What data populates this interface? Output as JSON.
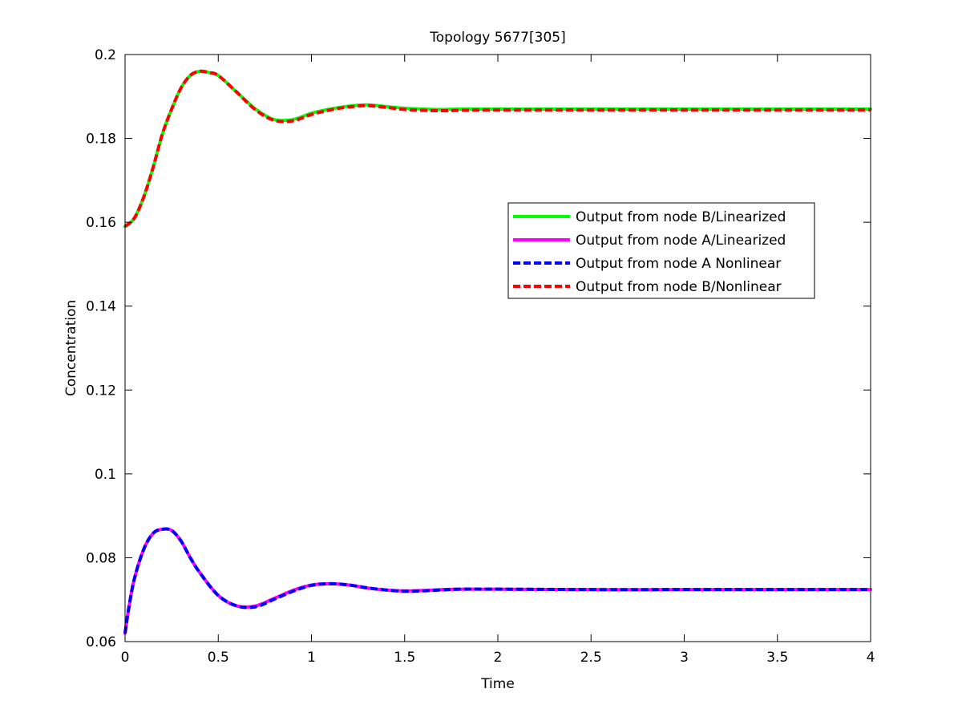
{
  "chart_data": {
    "type": "line",
    "title": "Topology 5677[305]",
    "xlabel": "Time",
    "ylabel": "Concentration",
    "xlim": [
      0,
      4
    ],
    "ylim": [
      0.06,
      0.2
    ],
    "x_ticks": [
      0,
      0.5,
      1,
      1.5,
      2,
      2.5,
      3,
      3.5,
      4
    ],
    "x_tick_labels": [
      "0",
      "0.5",
      "1",
      "1.5",
      "2",
      "2.5",
      "3",
      "3.5",
      "4"
    ],
    "y_ticks": [
      0.06,
      0.08,
      0.1,
      0.12,
      0.14,
      0.16,
      0.18,
      0.2
    ],
    "y_tick_labels": [
      "0.06",
      "0.08",
      "0.1",
      "0.12",
      "0.14",
      "0.16",
      "0.18",
      "0.2"
    ],
    "grid": false,
    "legend_position": "upper-right (inside axes)",
    "series": [
      {
        "name": "Output from node B/Linearized",
        "color": "#00ff00",
        "style": "solid",
        "x": [
          0,
          0.05,
          0.1,
          0.15,
          0.2,
          0.25,
          0.3,
          0.35,
          0.4,
          0.45,
          0.5,
          0.6,
          0.7,
          0.8,
          0.9,
          1.0,
          1.1,
          1.2,
          1.3,
          1.4,
          1.5,
          1.6,
          1.7,
          1.8,
          2.0,
          2.5,
          3.0,
          3.5,
          4.0
        ],
        "values": [
          0.159,
          0.161,
          0.166,
          0.173,
          0.181,
          0.187,
          0.192,
          0.195,
          0.196,
          0.1957,
          0.195,
          0.191,
          0.187,
          0.1845,
          0.1845,
          0.186,
          0.187,
          0.1877,
          0.188,
          0.1876,
          0.1872,
          0.187,
          0.1869,
          0.187,
          0.187,
          0.187,
          0.187,
          0.187,
          0.187
        ]
      },
      {
        "name": "Output from node A/Linearized",
        "color": "#ff00ff",
        "style": "solid",
        "x": [
          0,
          0.02,
          0.05,
          0.1,
          0.15,
          0.2,
          0.25,
          0.3,
          0.35,
          0.4,
          0.5,
          0.6,
          0.7,
          0.8,
          0.9,
          1.0,
          1.1,
          1.2,
          1.3,
          1.4,
          1.5,
          1.6,
          1.7,
          1.8,
          2.0,
          2.5,
          3.0,
          3.5,
          4.0
        ],
        "values": [
          0.062,
          0.068,
          0.075,
          0.082,
          0.0858,
          0.0868,
          0.0865,
          0.084,
          0.08,
          0.0765,
          0.071,
          0.0685,
          0.0685,
          0.0703,
          0.0722,
          0.0735,
          0.0738,
          0.0735,
          0.0728,
          0.0723,
          0.0721,
          0.0722,
          0.0724,
          0.0725,
          0.0725,
          0.0724,
          0.0724,
          0.0724,
          0.0724
        ]
      },
      {
        "name": "Output from node A Nonlinear",
        "color": "#0000ff",
        "style": "dashed",
        "x": [
          0,
          0.02,
          0.05,
          0.1,
          0.15,
          0.2,
          0.25,
          0.3,
          0.35,
          0.4,
          0.5,
          0.6,
          0.7,
          0.8,
          0.9,
          1.0,
          1.1,
          1.2,
          1.3,
          1.4,
          1.5,
          1.6,
          1.7,
          1.8,
          2.0,
          2.5,
          3.0,
          3.5,
          4.0
        ],
        "values": [
          0.062,
          0.068,
          0.075,
          0.082,
          0.0858,
          0.0868,
          0.0865,
          0.084,
          0.08,
          0.0765,
          0.071,
          0.0685,
          0.0683,
          0.0701,
          0.072,
          0.0734,
          0.0738,
          0.0735,
          0.0728,
          0.0723,
          0.072,
          0.0721,
          0.0723,
          0.0725,
          0.0725,
          0.0724,
          0.0724,
          0.0724,
          0.0724
        ]
      },
      {
        "name": "Output from node B/Nonlinear",
        "color": "#ff0000",
        "style": "dashed",
        "x": [
          0,
          0.05,
          0.1,
          0.15,
          0.2,
          0.25,
          0.3,
          0.35,
          0.4,
          0.45,
          0.5,
          0.6,
          0.7,
          0.8,
          0.9,
          1.0,
          1.1,
          1.2,
          1.3,
          1.4,
          1.5,
          1.6,
          1.7,
          1.8,
          2.0,
          2.5,
          3.0,
          3.5,
          4.0
        ],
        "values": [
          0.159,
          0.161,
          0.166,
          0.173,
          0.181,
          0.187,
          0.192,
          0.195,
          0.196,
          0.1957,
          0.195,
          0.191,
          0.1868,
          0.1843,
          0.1842,
          0.1857,
          0.1868,
          0.1875,
          0.1878,
          0.1874,
          0.1869,
          0.1867,
          0.1866,
          0.1867,
          0.1868,
          0.1868,
          0.1868,
          0.1868,
          0.1868
        ]
      }
    ]
  }
}
